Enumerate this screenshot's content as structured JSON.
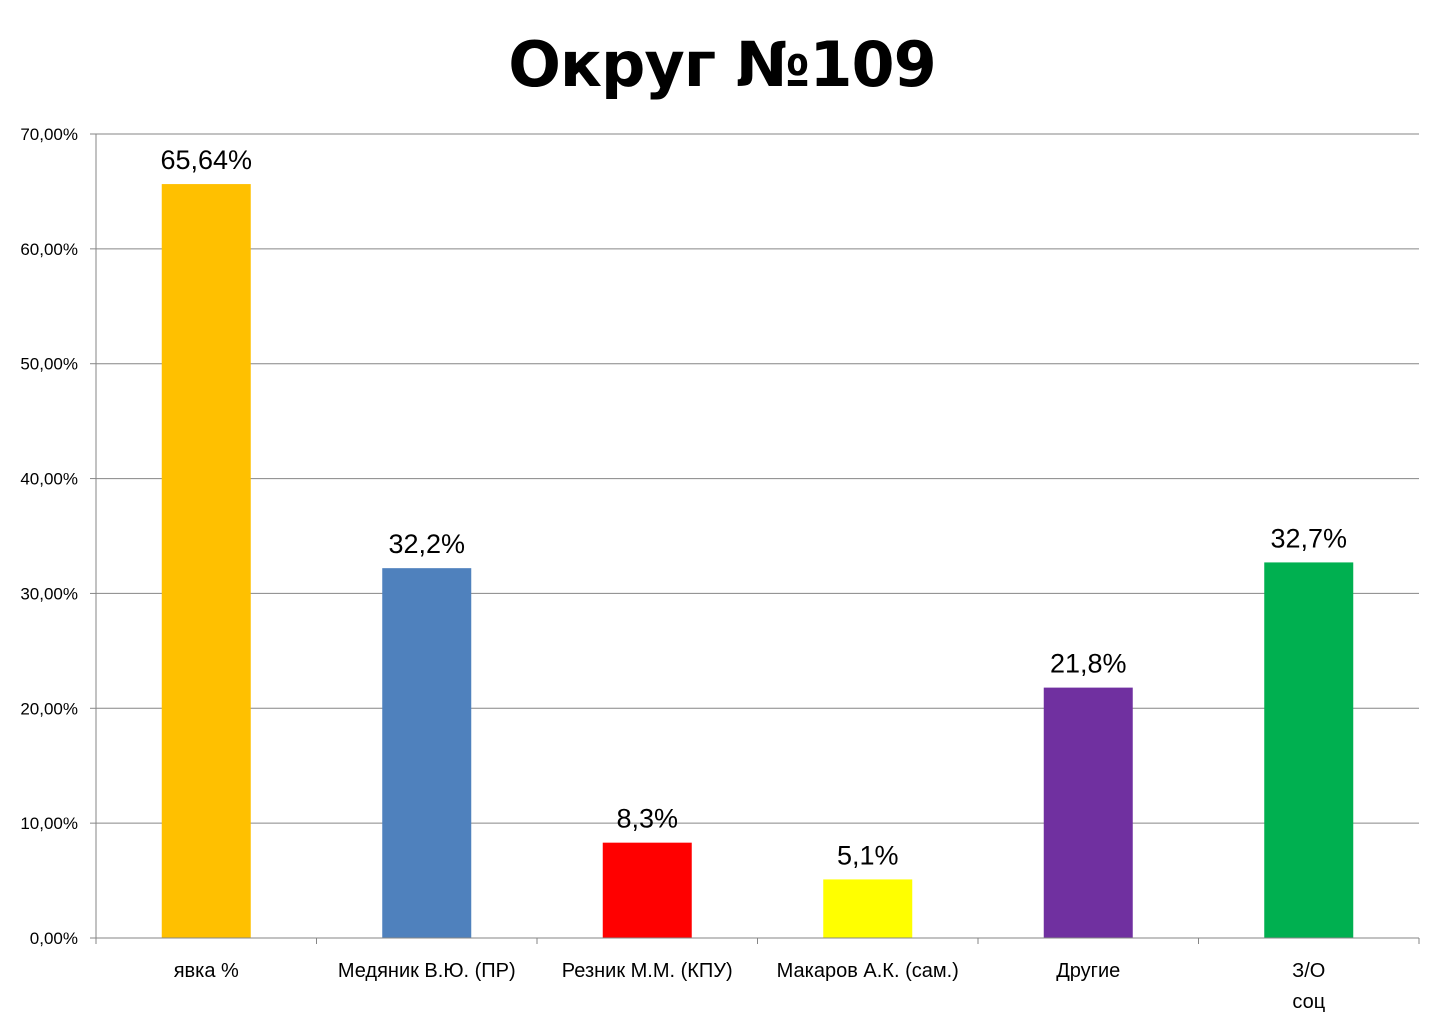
{
  "chart_data": {
    "type": "bar",
    "title": "Округ №109",
    "xlabel": "",
    "ylabel": "",
    "ylim": [
      0,
      0.7
    ],
    "grid": true,
    "yticks": [
      "0,00%",
      "10,00%",
      "20,00%",
      "30,00%",
      "40,00%",
      "50,00%",
      "60,00%",
      "70,00%"
    ],
    "categories": [
      [
        "явка %"
      ],
      [
        "Медяник В.Ю. (ПР)"
      ],
      [
        "Резник М.М. (КПУ)"
      ],
      [
        "Макаров А.К. (сам.)"
      ],
      [
        "Другие"
      ],
      [
        "З/О",
        "соц"
      ]
    ],
    "values": [
      0.6564,
      0.322,
      0.083,
      0.051,
      0.218,
      0.327
    ],
    "data_labels": [
      "65,64%",
      "32,2%",
      "8,3%",
      "5,1%",
      "21,8%",
      "32,7%"
    ],
    "colors": [
      "#FFC000",
      "#4F81BD",
      "#FF0000",
      "#FFFF00",
      "#7030A0",
      "#00B050"
    ]
  }
}
